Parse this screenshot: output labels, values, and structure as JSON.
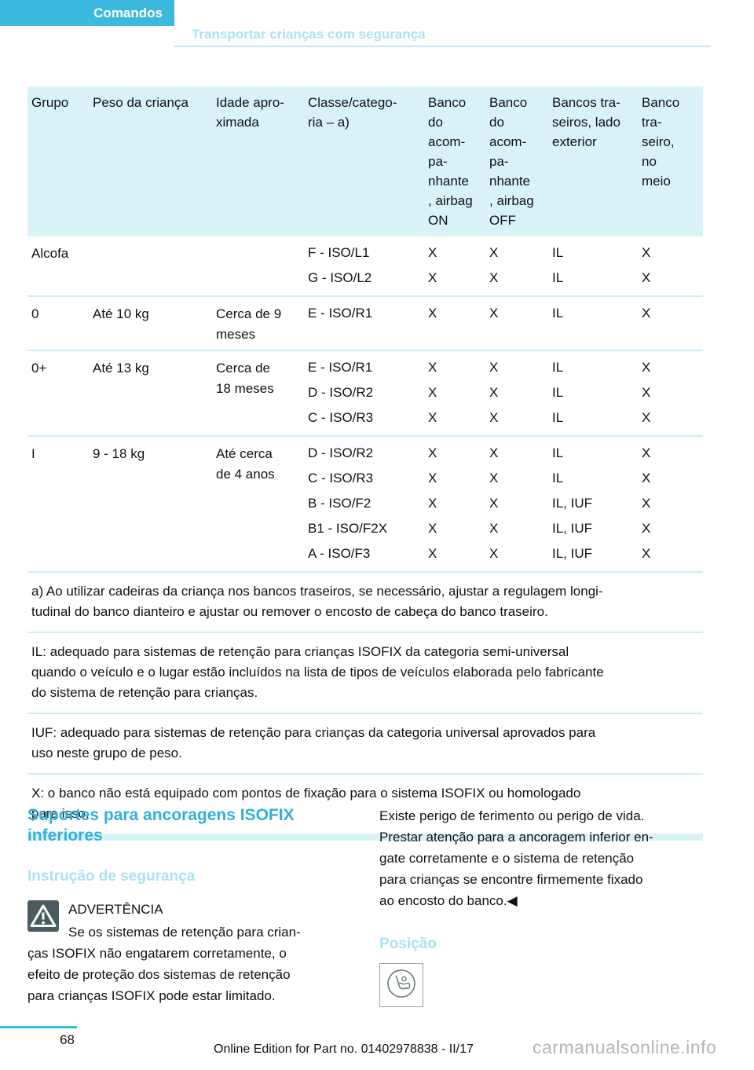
{
  "header": {
    "tab": "Comandos",
    "title": "Transportar crianças com segurança"
  },
  "table": {
    "headers": [
      "Grupo",
      "Peso da criança",
      "Idade apro-\nximada",
      "Classe/catego-\nria – a)",
      "Banco\ndo\nacom-\npa-\nnhante\n, airbag\nON",
      "Banco\ndo\nacom-\npa-\nnhante\n, airbag\nOFF",
      "Bancos tra-\nseiros, lado\nexterior",
      "Banco\ntra-\nseiro,\nno\nmeio"
    ],
    "rows": [
      {
        "grupo": "Alcofa",
        "peso": "",
        "idade": "",
        "entries": [
          [
            "F - ISO/L1",
            "X",
            "X",
            "IL",
            "X"
          ],
          [
            "G - ISO/L2",
            "X",
            "X",
            "IL",
            "X"
          ]
        ]
      },
      {
        "grupo": "0",
        "peso": "Até 10 kg",
        "idade": "Cerca de 9\nmeses",
        "entries": [
          [
            "E - ISO/R1",
            "X",
            "X",
            "IL",
            "X"
          ]
        ]
      },
      {
        "grupo": "0+",
        "peso": "Até 13 kg",
        "idade": "Cerca de\n18 meses",
        "entries": [
          [
            "E - ISO/R1",
            "X",
            "X",
            "IL",
            "X"
          ],
          [
            "D - ISO/R2",
            "X",
            "X",
            "IL",
            "X"
          ],
          [
            "C - ISO/R3",
            "X",
            "X",
            "IL",
            "X"
          ]
        ]
      },
      {
        "grupo": "I",
        "peso": "9 - 18 kg",
        "idade": "Até cerca\nde 4 anos",
        "entries": [
          [
            "D - ISO/R2",
            "X",
            "X",
            "IL",
            "X"
          ],
          [
            "C - ISO/R3",
            "X",
            "X",
            "IL",
            "X"
          ],
          [
            "B - ISO/F2",
            "X",
            "X",
            "IL, IUF",
            "X"
          ],
          [
            "B1 - ISO/F2X",
            "X",
            "X",
            "IL, IUF",
            "X"
          ],
          [
            "A - ISO/F3",
            "X",
            "X",
            "IL, IUF",
            "X"
          ]
        ]
      }
    ],
    "footnotes": [
      "a) Ao utilizar cadeiras da criança nos bancos traseiros, se necessário, ajustar a regulagem longi-\ntudinal do banco dianteiro e ajustar ou remover o encosto de cabeça do banco traseiro.",
      "IL: adequado para sistemas de retenção para crianças ISOFIX da categoria semi-universal\nquando o veículo e o lugar estão incluídos na lista de tipos de veículos elaborada pelo fabricante\ndo sistema de retenção para crianças.",
      "IUF: adequado para sistemas de retenção para crianças da categoria universal aprovados para\nuso neste grupo de peso.",
      "X: o banco não está equipado com pontos de fixação para o sistema ISOFIX ou homologado\npara isso."
    ]
  },
  "sections": {
    "anchors_title": "Suportes para ancoragens ISOFIX\ninferiores",
    "safety_heading": "Instrução de segurança",
    "warning_label": "ADVERTÊNCIA",
    "warning_text": "Se os sistemas de retenção para crian-\nças ISOFIX não engatarem corretamente, o\nefeito de proteção dos sistemas de retenção\npara crianças ISOFIX pode estar limitado.",
    "right_text": "Existe perigo de ferimento ou perigo de vida.\nPrestar atenção para a ancoragem inferior en-\ngate corretamente e o sistema de retenção\npara crianças se encontre firmemente fixado\nao encosto do banco.◀",
    "position_heading": "Posição"
  },
  "icons": {
    "warning": "warning-triangle-icon",
    "position": "child-seat-icon"
  },
  "footer": {
    "page_number": "68",
    "edition": "Online Edition for Part no. 01402978838 - II/17",
    "watermark": "carmanualsonline.info"
  },
  "colors": {
    "accent": "#3cb9de",
    "light_heading": "#a9e3f1",
    "section_heading": "#30b0d7",
    "table_header_bg": "#d9f2f8",
    "separator": "#c9eef7",
    "warning_icon_bg": "#4a5c60"
  }
}
